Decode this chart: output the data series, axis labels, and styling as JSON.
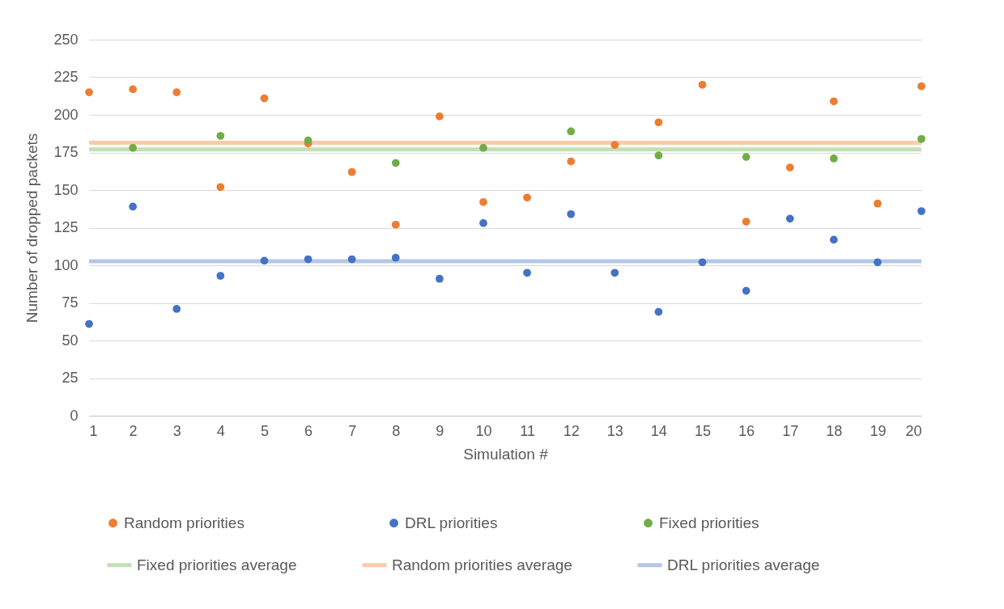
{
  "chart_data": {
    "type": "scatter",
    "xlabel": "Simulation #",
    "ylabel": "Number of dropped packets",
    "x": [
      1,
      2,
      3,
      4,
      5,
      6,
      7,
      8,
      9,
      10,
      11,
      12,
      13,
      14,
      15,
      16,
      17,
      18,
      19,
      20
    ],
    "xlim": [
      1,
      20
    ],
    "xticks": [
      1,
      2,
      3,
      4,
      5,
      6,
      7,
      8,
      9,
      10,
      11,
      12,
      13,
      14,
      15,
      16,
      17,
      18,
      19,
      20
    ],
    "ylim": [
      0,
      250
    ],
    "yticks": [
      0,
      25,
      50,
      75,
      100,
      125,
      150,
      175,
      200,
      225,
      250
    ],
    "grid": "y",
    "legend": "bottom",
    "marker": "circle",
    "series": [
      {
        "name": "Random priorities",
        "color": "#ed7d31",
        "values": [
          215,
          217,
          215,
          152,
          211,
          181,
          162,
          127,
          199,
          142,
          145,
          169,
          180,
          195,
          220,
          129,
          165,
          209,
          141,
          219
        ]
      },
      {
        "name": "DRL priorities",
        "color": "#4472c4",
        "values": [
          61,
          139,
          71,
          93,
          103,
          104,
          104,
          105,
          91,
          128,
          95,
          134,
          95,
          69,
          102,
          83,
          131,
          117,
          102,
          136
        ]
      },
      {
        "name": "Fixed priorities",
        "color": "#70ad47",
        "values": [
          null,
          178,
          null,
          186,
          null,
          183,
          null,
          168,
          null,
          178,
          null,
          189,
          null,
          173,
          null,
          172,
          null,
          171,
          null,
          184
        ]
      }
    ],
    "ref_lines": [
      {
        "axis": "y",
        "value": 177,
        "label": "Fixed priorities average",
        "color": "#c5e0b4"
      },
      {
        "axis": "y",
        "value": 181.5,
        "label": "Random priorities average",
        "color": "#f8cbad"
      },
      {
        "axis": "y",
        "value": 102.7,
        "label": "DRL priorities average",
        "color": "#b4c7e7"
      }
    ]
  }
}
